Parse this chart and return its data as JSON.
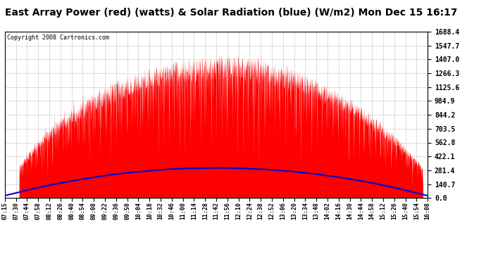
{
  "title": "East Array Power (red) (watts) & Solar Radiation (blue) (W/m2) Mon Dec 15 16:17",
  "copyright": "Copyright 2008 Cartronics.com",
  "ylabel_right_ticks": [
    0.0,
    140.7,
    281.4,
    422.1,
    562.8,
    703.5,
    844.2,
    984.9,
    1125.6,
    1266.3,
    1407.0,
    1547.7,
    1688.4
  ],
  "ymax": 1688.4,
  "ymin": 0.0,
  "background_color": "#ffffff",
  "plot_bg_color": "#ffffff",
  "grid_color": "#aaaaaa",
  "title_font_size": 10,
  "red_fill_color": "#ff0000",
  "blue_line_color": "#0000cc",
  "x_labels": [
    "07:15",
    "07:30",
    "07:44",
    "07:58",
    "08:12",
    "08:26",
    "08:40",
    "08:54",
    "09:08",
    "09:22",
    "09:36",
    "09:50",
    "10:04",
    "10:18",
    "10:32",
    "10:46",
    "11:00",
    "11:14",
    "11:28",
    "11:42",
    "11:56",
    "12:10",
    "12:24",
    "12:38",
    "12:52",
    "13:06",
    "13:20",
    "13:34",
    "13:48",
    "14:02",
    "14:16",
    "14:30",
    "14:44",
    "14:58",
    "15:12",
    "15:26",
    "15:40",
    "15:54",
    "16:08"
  ],
  "power_peak": 1450.0,
  "radiation_peak": 305.0,
  "solar_noon": 11.9,
  "day_start": 7.25,
  "day_end": 16.133
}
